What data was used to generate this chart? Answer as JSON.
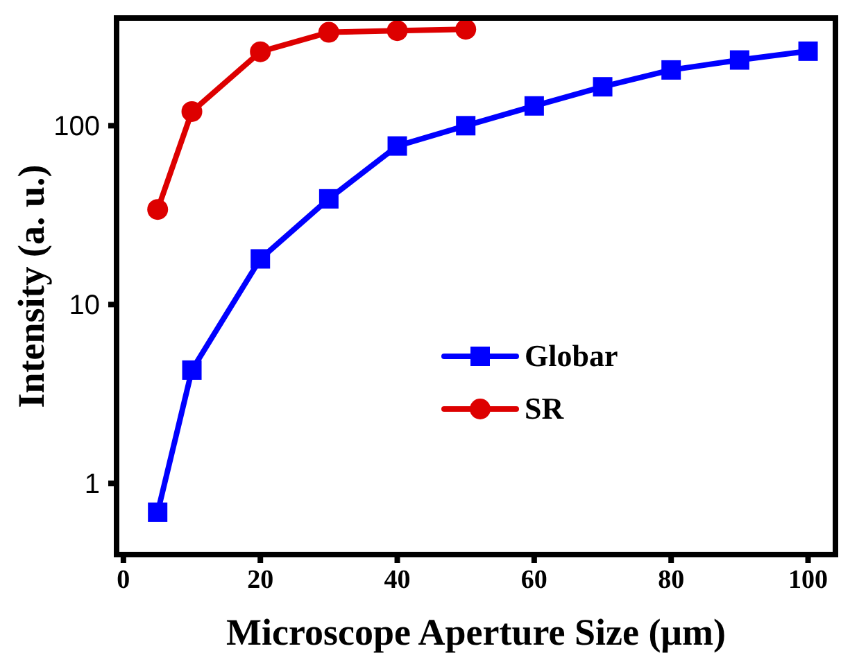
{
  "chart_data": {
    "type": "line",
    "xlabel": "Microscope Aperture Size (μm)",
    "ylabel": "Intensity (a. u.)",
    "xlim": [
      -1,
      104
    ],
    "xticks": [
      0,
      20,
      40,
      60,
      80,
      100
    ],
    "ylim": [
      0.4,
      400
    ],
    "yticks": [
      1,
      10,
      100
    ],
    "log": "y",
    "legend": "center",
    "grid": false,
    "line_style": "solid",
    "series": [
      {
        "name": "Globar",
        "color": "#0000ff",
        "marker": "square",
        "x": [
          5,
          10,
          20,
          30,
          40,
          50,
          60,
          70,
          80,
          90,
          100
        ],
        "values": [
          0.69,
          4.3,
          18,
          39,
          77,
          100,
          129,
          165,
          205,
          233,
          261
        ]
      },
      {
        "name": "SR",
        "color": "#dd0000",
        "marker": "circle",
        "x": [
          5,
          10,
          20,
          30,
          40,
          50
        ],
        "values": [
          34,
          120,
          259,
          333,
          340,
          346
        ]
      }
    ]
  }
}
